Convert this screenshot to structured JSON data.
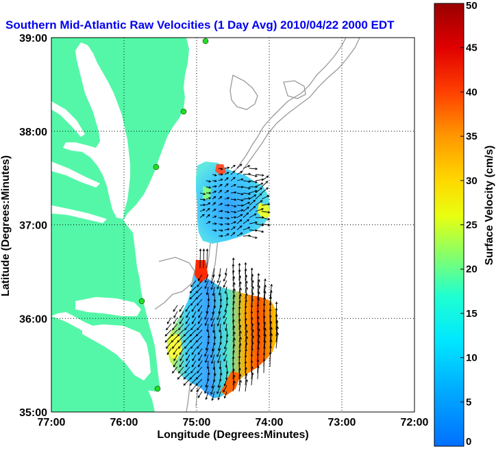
{
  "title": "Southern Mid-Atlantic Raw Velocities (1 Day Avg) 2010/04/22 2000 EDT",
  "axes": {
    "xlabel": "Longitude (Degrees:Minutes)",
    "ylabel": "Latitude (Degrees:Minutes)",
    "xticks": [
      "77:00",
      "76:00",
      "75:00",
      "74:00",
      "73:00",
      "72:00"
    ],
    "yticks": [
      "39:00",
      "38:00",
      "37:00",
      "36:00",
      "35:00"
    ],
    "xlim_deg_west": [
      77,
      72
    ],
    "ylim_deg_north": [
      35,
      39
    ]
  },
  "colorbar": {
    "label": "Surface Velocity (cm/s)",
    "ticks": [
      "0",
      "5",
      "10",
      "15",
      "20",
      "25",
      "30",
      "35",
      "40",
      "45",
      "50"
    ],
    "range": [
      0,
      50
    ],
    "colormap": "jet"
  },
  "colors": {
    "land": "#54f7a8",
    "water": "#ffffff",
    "isobath": "#999999",
    "title": "#0000ee",
    "station": "#22dd22"
  },
  "map": {
    "grid": true,
    "isobaths": true,
    "coverage_regions": [
      "Maryland/Virginia coast offshore patch",
      "Cape Hatteras offshore patch"
    ],
    "stations": 5,
    "vector_color": "#000000"
  }
}
